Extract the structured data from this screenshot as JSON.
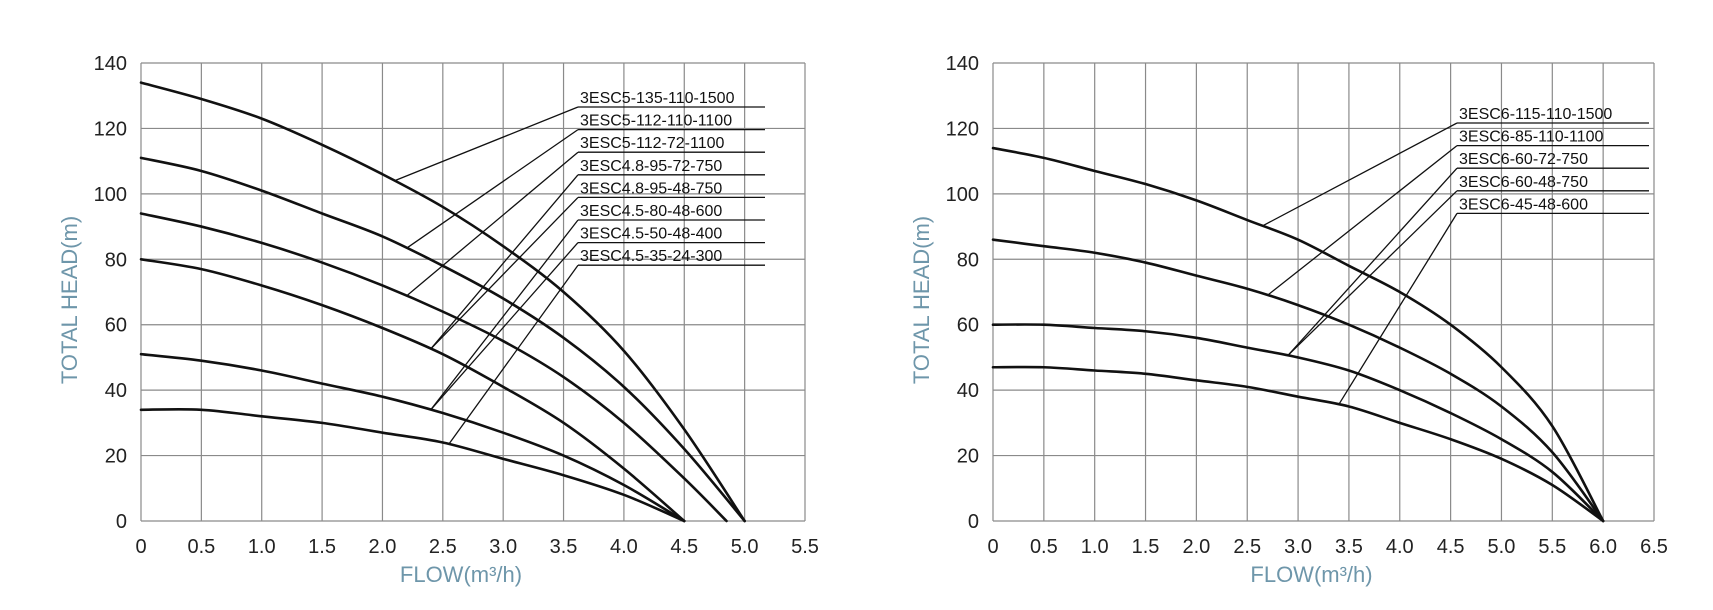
{
  "colors": {
    "grid": "#8a8a8a",
    "curve": "#111111",
    "axis_title": "#6e96aa",
    "leader": "#111111"
  },
  "chart_data": [
    {
      "type": "line",
      "xlabel": "FLOW(m³/h)",
      "ylabel": "TOTAL HEAD(m)",
      "xlim": [
        0,
        5.5
      ],
      "ylim": [
        0,
        140
      ],
      "x_ticks": [
        "0",
        "0.5",
        "1.0",
        "1.5",
        "2.0",
        "2.5",
        "3.0",
        "3.5",
        "4.0",
        "4.5",
        "5.0",
        "5.5"
      ],
      "y_ticks": [
        "0",
        "20",
        "40",
        "60",
        "80",
        "100",
        "120",
        "140"
      ],
      "grid": true,
      "legend_placement": "top-right",
      "series": [
        {
          "name": "3ESC5-135-110-1500",
          "x": [
            0,
            0.5,
            1.0,
            1.5,
            2.0,
            2.5,
            3.0,
            3.5,
            4.0,
            4.5,
            5.0
          ],
          "y": [
            134,
            129,
            123,
            115,
            106,
            96,
            84,
            70,
            52,
            28,
            0
          ],
          "callout_at": 2.1
        },
        {
          "name": "3ESC5-112-110-1100",
          "x": [
            0,
            0.5,
            1.0,
            1.5,
            2.0,
            2.5,
            3.0,
            3.5,
            4.0,
            4.5,
            5.0
          ],
          "y": [
            111,
            107,
            101,
            94,
            87,
            78,
            68,
            56,
            41,
            22,
            0
          ],
          "callout_at": 2.2
        },
        {
          "name": "3ESC5-112-72-1100",
          "x": [
            0,
            0.5,
            1.0,
            1.5,
            2.0,
            2.5,
            3.0,
            3.5,
            4.0,
            4.5,
            4.85
          ],
          "y": [
            94,
            90,
            85,
            79,
            72,
            64,
            55,
            44,
            30,
            13,
            0
          ],
          "callout_at": 2.2
        },
        {
          "name": "3ESC4.8-95-72-750",
          "x": [
            0,
            0.5,
            1.0,
            1.5,
            2.0,
            2.5,
            3.0,
            3.5,
            4.0,
            4.5
          ],
          "y": [
            80,
            77,
            72,
            66,
            59,
            51,
            41,
            30,
            16,
            0
          ],
          "callout_at": 2.4
        },
        {
          "name": "3ESC4.8-95-48-750",
          "x": [
            0,
            0.5,
            1.0,
            1.5,
            2.0,
            2.5,
            3.0,
            3.5,
            4.0,
            4.5
          ],
          "y": [
            80,
            77,
            72,
            66,
            59,
            51,
            41,
            30,
            16,
            0
          ],
          "callout_at": 2.4
        },
        {
          "name": "3ESC4.5-80-48-600",
          "x": [
            0,
            0.5,
            1.0,
            1.5,
            2.0,
            2.5,
            3.0,
            3.5,
            4.0,
            4.5
          ],
          "y": [
            51,
            49,
            46,
            42,
            38,
            33,
            27,
            20,
            11,
            0
          ],
          "callout_at": 2.4
        },
        {
          "name": "3ESC4.5-50-48-400",
          "x": [
            0,
            0.5,
            1.0,
            1.5,
            2.0,
            2.5,
            3.0,
            3.5,
            4.0,
            4.5
          ],
          "y": [
            51,
            49,
            46,
            42,
            38,
            33,
            27,
            20,
            11,
            0
          ],
          "callout_at": 2.4
        },
        {
          "name": "3ESC4.5-35-24-300",
          "x": [
            0,
            0.5,
            1.0,
            1.5,
            2.0,
            2.5,
            3.0,
            3.5,
            4.0,
            4.5
          ],
          "y": [
            34,
            34,
            32,
            30,
            27,
            24,
            19,
            14,
            8,
            0
          ],
          "callout_at": 2.55
        }
      ]
    },
    {
      "type": "line",
      "xlabel": "FLOW(m³/h)",
      "ylabel": "TOTAL HEAD(m)",
      "xlim": [
        0,
        6.5
      ],
      "ylim": [
        0,
        140
      ],
      "x_ticks": [
        "0",
        "0.5",
        "1.0",
        "1.5",
        "2.0",
        "2.5",
        "3.0",
        "3.5",
        "4.0",
        "4.5",
        "5.0",
        "5.5",
        "6.0",
        "6.5"
      ],
      "y_ticks": [
        "0",
        "20",
        "40",
        "60",
        "80",
        "100",
        "120",
        "140"
      ],
      "grid": true,
      "legend_placement": "top-right",
      "series": [
        {
          "name": "3ESC6-115-110-1500",
          "x": [
            0,
            0.5,
            1.0,
            1.5,
            2.0,
            2.5,
            3.0,
            3.5,
            4.0,
            4.5,
            5.0,
            5.5,
            6.0
          ],
          "y": [
            114,
            111,
            107,
            103,
            98,
            92,
            86,
            78,
            70,
            60,
            47,
            29,
            0
          ],
          "callout_at": 2.65
        },
        {
          "name": "3ESC6-85-110-1100",
          "x": [
            0,
            0.5,
            1.0,
            1.5,
            2.0,
            2.5,
            3.0,
            3.5,
            4.0,
            4.5,
            5.0,
            5.5,
            6.0
          ],
          "y": [
            86,
            84,
            82,
            79,
            75,
            71,
            66,
            60,
            53,
            45,
            35,
            21,
            0
          ],
          "callout_at": 2.7
        },
        {
          "name": "3ESC6-60-72-750",
          "x": [
            0,
            0.5,
            1.0,
            1.5,
            2.0,
            2.5,
            3.0,
            3.5,
            4.0,
            4.5,
            5.0,
            5.5,
            6.0
          ],
          "y": [
            60,
            60,
            59,
            58,
            56,
            53,
            50,
            46,
            40,
            33,
            25,
            15,
            0
          ],
          "callout_at": 2.9
        },
        {
          "name": "3ESC6-60-48-750",
          "x": [
            0,
            0.5,
            1.0,
            1.5,
            2.0,
            2.5,
            3.0,
            3.5,
            4.0,
            4.5,
            5.0,
            5.5,
            6.0
          ],
          "y": [
            60,
            60,
            59,
            58,
            56,
            53,
            50,
            46,
            40,
            33,
            25,
            15,
            0
          ],
          "callout_at": 2.9
        },
        {
          "name": "3ESC6-45-48-600",
          "x": [
            0,
            0.5,
            1.0,
            1.5,
            2.0,
            2.5,
            3.0,
            3.5,
            4.0,
            4.5,
            5.0,
            5.5,
            6.0
          ],
          "y": [
            47,
            47,
            46,
            45,
            43,
            41,
            38,
            35,
            30,
            25,
            19,
            11,
            0
          ],
          "callout_at": 3.4
        }
      ]
    }
  ]
}
